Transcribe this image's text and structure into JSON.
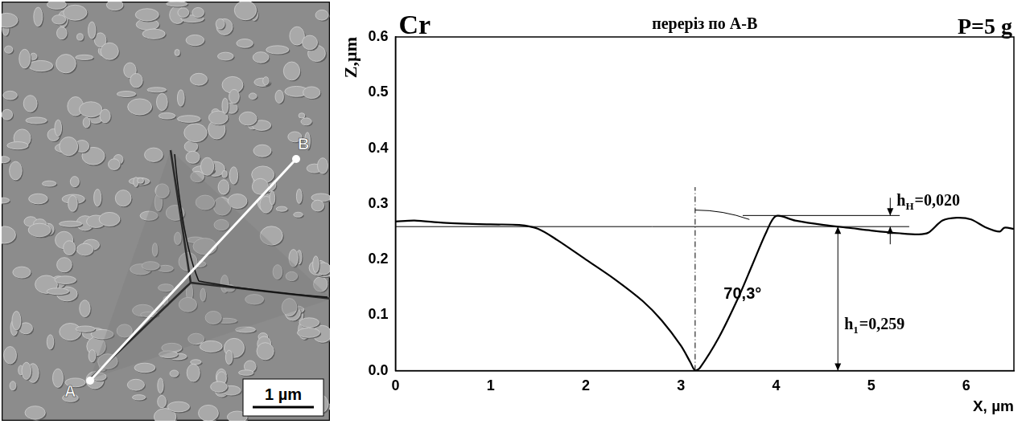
{
  "chart_data": {
    "type": "line",
    "title": "Cr",
    "subtitle": "переріз по A-B",
    "load_label": "P=5 g",
    "x_label": "X, µm",
    "y_label": "Z,µm",
    "xlim": [
      0,
      6.5
    ],
    "xticks": [
      0,
      1,
      2,
      3,
      4,
      5,
      6
    ],
    "ylim": [
      0,
      0.6
    ],
    "yticks": [
      {
        "value": 0,
        "label": "0.0"
      },
      0.1,
      0.2,
      0.3,
      0.4,
      0.5,
      0.6
    ],
    "grid": false,
    "legend": false,
    "series": [
      {
        "name": "Cr",
        "color": "#000000",
        "line_style": "solid",
        "marker": "none",
        "x": [
          0,
          0.2,
          0.5,
          1.0,
          1.3,
          1.5,
          1.7,
          2.0,
          2.3,
          2.6,
          2.8,
          3.0,
          3.1,
          3.15,
          3.2,
          3.4,
          3.6,
          3.75,
          3.9,
          4.0,
          4.2,
          4.5,
          4.8,
          5.0,
          5.3,
          5.5,
          5.6,
          5.75,
          5.9,
          6.05,
          6.2,
          6.35,
          6.4,
          6.5
        ],
        "values": [
          0.268,
          0.27,
          0.266,
          0.263,
          0.262,
          0.255,
          0.235,
          0.2,
          0.165,
          0.125,
          0.09,
          0.045,
          0.015,
          0.0,
          0.005,
          0.06,
          0.13,
          0.19,
          0.25,
          0.278,
          0.27,
          0.262,
          0.256,
          0.252,
          0.247,
          0.245,
          0.248,
          0.27,
          0.275,
          0.272,
          0.258,
          0.25,
          0.257,
          0.255
        ]
      }
    ],
    "reference_lines": [
      {
        "x": [
          0,
          5.4
        ],
        "y": 0.259,
        "line_style": "solid"
      },
      {
        "x": [
          3.65,
          5.3
        ],
        "y": 0.279,
        "line_style": "solid"
      },
      {
        "x": 3.15,
        "y": [
          0,
          0.33
        ],
        "line_style": "dashdot"
      }
    ],
    "annotations": [
      {
        "text": "70,3°",
        "angle_deg": 70.3
      },
      {
        "symbol": "h",
        "subscript": "H",
        "text": "=0,020",
        "x": 5.2,
        "y": [
          0.259,
          0.279
        ]
      },
      {
        "symbol": "h",
        "subscript": "1",
        "text": "=0,259",
        "x": 4.65,
        "y": [
          0,
          0.259
        ]
      }
    ]
  },
  "image_panel": {
    "point_labels": [
      "A",
      "B"
    ],
    "scale_bar": "1 µm"
  }
}
